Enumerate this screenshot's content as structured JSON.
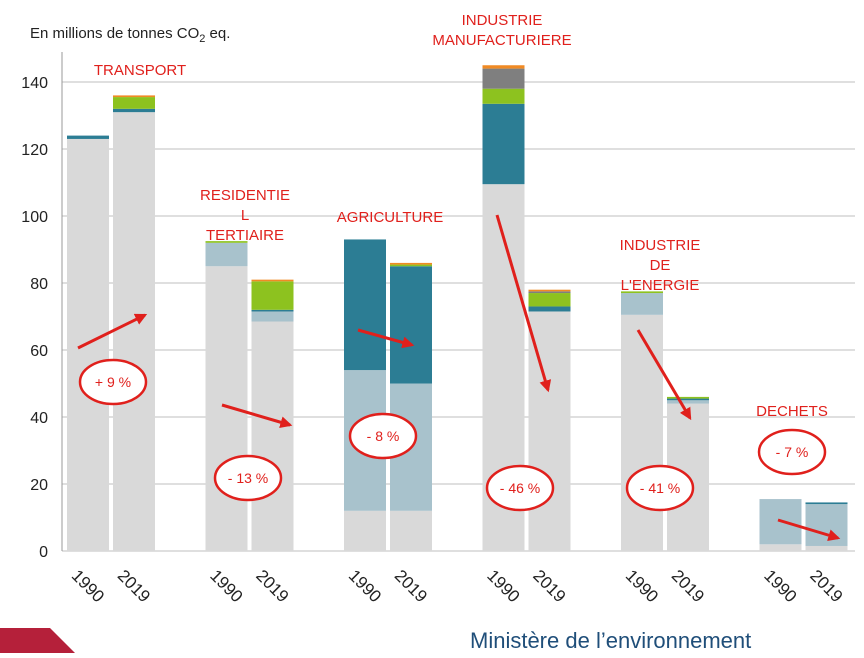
{
  "chart_data": {
    "type": "stacked-bar",
    "y_label": {
      "text": "En millions de tonnes CO",
      "sub": "2",
      "tail": " eq."
    },
    "categories": [
      "1990",
      "2019",
      "1990",
      "2019",
      "1990",
      "2019",
      "1990",
      "2019",
      "1990",
      "2019",
      "1990",
      "2019"
    ],
    "groups": [
      {
        "label": [
          "TRANSPORT"
        ],
        "change": "+ 9 %"
      },
      {
        "label": [
          "RESIDENTIE",
          "L",
          "TERTIAIRE"
        ],
        "change": "- 13 %"
      },
      {
        "label": [
          "AGRICULTURE"
        ],
        "change": "- 8 %"
      },
      {
        "label": [
          "INDUSTRIE",
          "MANUFACTURIERE"
        ],
        "change": "- 46 %"
      },
      {
        "label": [
          "INDUSTRIE",
          "DE",
          "L'ENERGIE"
        ],
        "change": "- 41 %"
      },
      {
        "label": [
          "DECHETS"
        ],
        "change": "- 7 %"
      }
    ],
    "series": [
      {
        "color": "#d9d9d9",
        "values": [
          123,
          131,
          85,
          68.5,
          12,
          12,
          109.5,
          71.5,
          70.5,
          44,
          2,
          1.5
        ]
      },
      {
        "color": "#a8c2cc",
        "values": [
          0,
          0,
          7,
          3,
          42,
          38,
          0,
          0,
          6.5,
          1,
          13.5,
          12.5
        ]
      },
      {
        "color": "#2c7d94",
        "values": [
          1,
          1,
          0,
          0.5,
          39,
          35,
          24,
          1.5,
          0,
          0.5,
          0,
          0.5
        ]
      },
      {
        "color": "#8dc21f",
        "values": [
          0,
          3.5,
          0.5,
          8.5,
          0,
          0.5,
          4.5,
          4,
          0.5,
          0.5,
          0,
          0
        ]
      },
      {
        "color": "#7f7f7f",
        "values": [
          0,
          0,
          0,
          0,
          0,
          0,
          6,
          0.5,
          0,
          0,
          0,
          0
        ]
      },
      {
        "color": "#f08a24",
        "values": [
          0,
          0.5,
          0,
          0.5,
          0,
          0.5,
          1,
          0.5,
          0,
          0,
          0,
          0
        ]
      }
    ],
    "ylim": [
      0,
      140
    ],
    "yticks": [
      0,
      20,
      40,
      60,
      80,
      100,
      120,
      140
    ],
    "grid": true
  },
  "footer": "Ministère de l’environnement"
}
